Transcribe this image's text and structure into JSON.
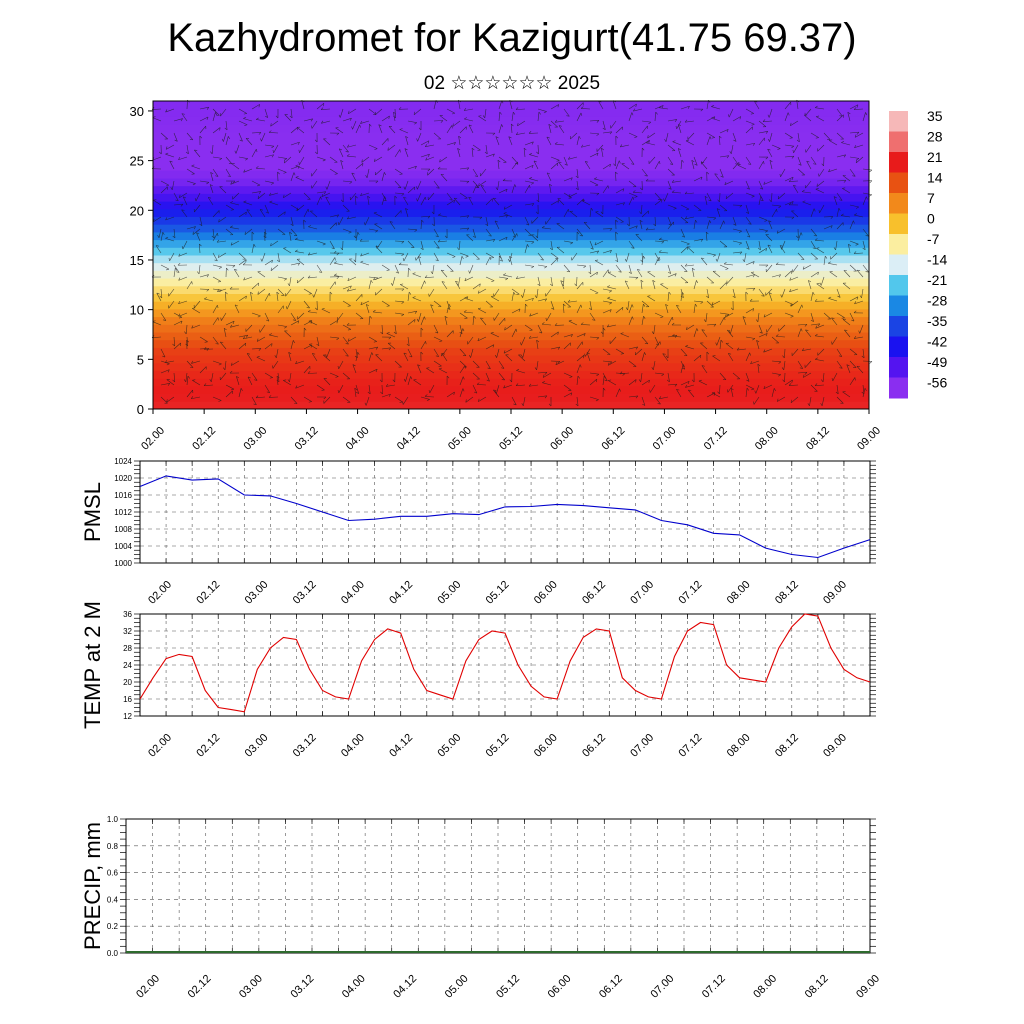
{
  "page": {
    "title": "Kazhydromet for Kazigurt(41.75 69.37)",
    "subtitle": "02 ☆☆☆☆☆☆ 2025"
  },
  "time_labels": [
    "02.00",
    "02.12",
    "03.00",
    "03.12",
    "04.00",
    "04.12",
    "05.00",
    "05.12",
    "06.00",
    "06.12",
    "07.00",
    "07.12",
    "08.00",
    "08.12",
    "09.00"
  ],
  "chart_data": [
    {
      "type": "heatmap",
      "ylim": [
        0,
        31
      ],
      "yticks": [
        0,
        5,
        10,
        15,
        20,
        25,
        30
      ],
      "colorbar": {
        "labels": [
          "35",
          "28",
          "21",
          "14",
          "7",
          "0",
          "-7",
          "-14",
          "-21",
          "-28",
          "-35",
          "-42",
          "-49",
          "-56"
        ],
        "colors": [
          "#f6b8b8",
          "#ef6f6f",
          "#e81b1b",
          "#e85212",
          "#f2891b",
          "#f8c02c",
          "#fbeea0",
          "#dbeef6",
          "#52c7ec",
          "#1a88e4",
          "#1a44e4",
          "#1a12f0",
          "#5414f0",
          "#8a2ef0"
        ]
      },
      "temperature_profile": [
        [
          0,
          22
        ],
        [
          3,
          20
        ],
        [
          6,
          16
        ],
        [
          9,
          8
        ],
        [
          12,
          -4
        ],
        [
          15,
          -16
        ],
        [
          18,
          -32
        ],
        [
          21,
          -46
        ],
        [
          23,
          -54
        ],
        [
          25,
          -57
        ],
        [
          27,
          -56
        ],
        [
          31,
          -55
        ]
      ],
      "wind_barbs": "shown"
    },
    {
      "type": "line",
      "ylabel": "PMSL",
      "ylim": [
        1000,
        1024
      ],
      "yticks": [
        1000,
        1004,
        1008,
        1012,
        1016,
        1020,
        1024
      ],
      "x_hours": [
        0,
        6,
        12,
        18,
        24,
        30,
        36,
        42,
        48,
        54,
        60,
        66,
        72,
        78,
        84,
        90,
        96,
        102,
        108,
        114,
        120,
        126,
        132,
        138,
        144,
        150,
        156,
        162,
        168
      ],
      "values": [
        1018,
        1020.5,
        1019.5,
        1019.8,
        1016,
        1015.8,
        1014,
        1012,
        1010,
        1010.3,
        1011,
        1011,
        1011.6,
        1011.4,
        1013.2,
        1013.3,
        1013.8,
        1013.5,
        1013,
        1012.5,
        1010,
        1009,
        1007,
        1006.6,
        1003.5,
        1002,
        1001.3,
        1003.5,
        1005.5
      ],
      "color": "#0000cc"
    },
    {
      "type": "line",
      "ylabel": "TEMP at 2 M",
      "ylim": [
        12,
        36
      ],
      "yticks": [
        12,
        16,
        20,
        24,
        28,
        32,
        36
      ],
      "x_hours": [
        0,
        3,
        6,
        9,
        12,
        15,
        18,
        21,
        24,
        27,
        30,
        33,
        36,
        39,
        42,
        45,
        48,
        51,
        54,
        57,
        60,
        63,
        66,
        69,
        72,
        75,
        78,
        81,
        84,
        87,
        90,
        93,
        96,
        99,
        102,
        105,
        108,
        111,
        114,
        117,
        120,
        123,
        126,
        129,
        132,
        135,
        138,
        141,
        144,
        147,
        150,
        153,
        156,
        159,
        162,
        165,
        168
      ],
      "values": [
        16,
        21,
        25.5,
        26.5,
        26,
        18,
        14,
        13.5,
        13,
        23,
        28,
        30.5,
        30,
        23,
        18,
        16.5,
        16,
        25,
        30,
        32.5,
        31.5,
        23,
        18,
        17,
        16,
        25,
        30,
        32,
        31.5,
        24,
        19,
        16.5,
        16,
        25,
        30.5,
        32.5,
        32,
        21,
        18,
        16.5,
        16,
        26,
        32,
        34,
        33.5,
        24,
        21,
        20.5,
        20,
        28,
        33,
        36,
        35.5,
        28,
        23,
        21,
        20
      ],
      "color": "#e00000"
    },
    {
      "type": "bar",
      "ylabel": "PRECIP, mm",
      "ylim": [
        0,
        1
      ],
      "yticks": [
        "0.0",
        "0.2",
        "0.4",
        "0.6",
        "0.8",
        "1.0"
      ],
      "values": []
    }
  ]
}
